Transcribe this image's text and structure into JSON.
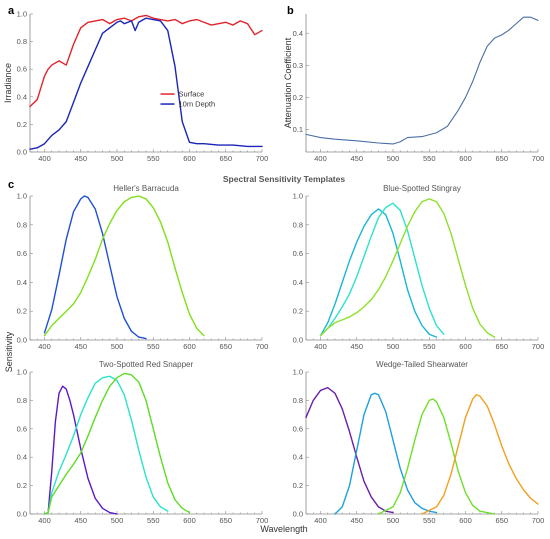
{
  "figure": {
    "panel_labels": [
      "a",
      "b",
      "c"
    ],
    "section_title": "Spectral Sensitivity Templates",
    "shared_xlabel": "Wavelength",
    "shared_ylabel": "Sensitivity"
  },
  "chart_data": [
    {
      "id": "a",
      "type": "line",
      "ylabel": "Irradiance",
      "xlim": [
        380,
        700
      ],
      "ylim": [
        0,
        1.0
      ],
      "xticks": [
        400,
        450,
        500,
        550,
        600,
        650,
        700
      ],
      "yticks": [
        0.0,
        0.2,
        0.4,
        0.6,
        0.8,
        1.0
      ],
      "ytick_labels": [
        "0.0",
        "0.2",
        "0.4",
        "0.6",
        "0.8",
        "1.0"
      ],
      "legend_position": "center-right",
      "series": [
        {
          "name": "Surface",
          "color": "#e3232c",
          "x": [
            380,
            390,
            400,
            405,
            410,
            420,
            430,
            440,
            450,
            460,
            470,
            480,
            490,
            500,
            510,
            520,
            530,
            540,
            550,
            560,
            570,
            580,
            590,
            600,
            610,
            620,
            630,
            640,
            650,
            660,
            670,
            680,
            690,
            700
          ],
          "y": [
            0.33,
            0.38,
            0.55,
            0.6,
            0.63,
            0.66,
            0.63,
            0.78,
            0.9,
            0.94,
            0.95,
            0.96,
            0.93,
            0.96,
            0.97,
            0.95,
            0.98,
            0.99,
            0.97,
            0.96,
            0.95,
            0.96,
            0.93,
            0.95,
            0.96,
            0.94,
            0.92,
            0.93,
            0.94,
            0.92,
            0.95,
            0.93,
            0.85,
            0.88
          ]
        },
        {
          "name": "10m Depth",
          "color": "#1b25b8",
          "x": [
            380,
            390,
            400,
            410,
            420,
            430,
            440,
            450,
            460,
            470,
            480,
            490,
            500,
            505,
            510,
            520,
            525,
            530,
            540,
            550,
            560,
            570,
            580,
            590,
            600,
            610,
            620,
            640,
            660,
            680,
            700
          ],
          "y": [
            0.02,
            0.03,
            0.06,
            0.12,
            0.16,
            0.22,
            0.36,
            0.5,
            0.62,
            0.74,
            0.86,
            0.9,
            0.94,
            0.95,
            0.93,
            0.95,
            0.88,
            0.94,
            0.97,
            0.96,
            0.95,
            0.88,
            0.62,
            0.22,
            0.07,
            0.06,
            0.06,
            0.05,
            0.05,
            0.04,
            0.04
          ]
        }
      ]
    },
    {
      "id": "b",
      "type": "line",
      "ylabel": "Attenuation Coefficient",
      "xlim": [
        380,
        700
      ],
      "ylim": [
        0.03,
        0.46
      ],
      "xticks": [
        400,
        450,
        500,
        550,
        600,
        650,
        700
      ],
      "yticks": [
        0.1,
        0.2,
        0.3,
        0.4
      ],
      "ytick_labels": [
        "0.1",
        "0.2",
        "0.3",
        "0.4"
      ],
      "series": [
        {
          "color": "#4a6fa5",
          "x": [
            380,
            400,
            420,
            450,
            480,
            500,
            510,
            520,
            540,
            560,
            575,
            590,
            600,
            610,
            620,
            630,
            640,
            650,
            660,
            670,
            680,
            690,
            700
          ],
          "y": [
            0.085,
            0.075,
            0.07,
            0.065,
            0.058,
            0.055,
            0.062,
            0.075,
            0.078,
            0.09,
            0.11,
            0.16,
            0.2,
            0.25,
            0.31,
            0.36,
            0.385,
            0.395,
            0.41,
            0.43,
            0.45,
            0.45,
            0.44
          ]
        }
      ]
    },
    {
      "id": "c1",
      "type": "line",
      "title": "Heller's Barracuda",
      "xlim": [
        380,
        700
      ],
      "ylim": [
        0,
        1.0
      ],
      "xticks": [
        400,
        450,
        500,
        550,
        600,
        650,
        700
      ],
      "yticks": [
        0.0,
        0.2,
        0.4,
        0.6,
        0.8,
        1.0
      ],
      "ytick_labels": [
        "0.0",
        "0.2",
        "0.4",
        "0.6",
        "0.8",
        "1.0"
      ],
      "series": [
        {
          "color": "#1f4fd6",
          "x": [
            400,
            410,
            420,
            430,
            440,
            450,
            455,
            460,
            470,
            480,
            490,
            500,
            510,
            520,
            530,
            540
          ],
          "y": [
            0.05,
            0.21,
            0.45,
            0.7,
            0.89,
            0.98,
            1.0,
            0.99,
            0.91,
            0.74,
            0.52,
            0.3,
            0.15,
            0.06,
            0.02,
            0.01
          ]
        },
        {
          "color": "#7fe018",
          "x": [
            400,
            410,
            420,
            430,
            440,
            450,
            460,
            470,
            480,
            490,
            500,
            510,
            520,
            530,
            540,
            550,
            560,
            570,
            580,
            590,
            600,
            610,
            620
          ],
          "y": [
            0.03,
            0.1,
            0.15,
            0.2,
            0.25,
            0.33,
            0.44,
            0.56,
            0.7,
            0.81,
            0.9,
            0.96,
            0.99,
            1.0,
            0.98,
            0.92,
            0.82,
            0.68,
            0.5,
            0.33,
            0.18,
            0.08,
            0.03
          ]
        }
      ]
    },
    {
      "id": "c2",
      "type": "line",
      "title": "Blue-Spotted Stingray",
      "xlim": [
        380,
        700
      ],
      "ylim": [
        0,
        1.0
      ],
      "xticks": [
        400,
        450,
        500,
        550,
        600,
        650,
        700
      ],
      "yticks": [
        0.0,
        0.2,
        0.4,
        0.6,
        0.8,
        1.0
      ],
      "ytick_labels": [
        "0.0",
        "0.2",
        "0.4",
        "0.6",
        "0.8",
        "1.0"
      ],
      "series": [
        {
          "color": "#19b7d6",
          "x": [
            400,
            410,
            420,
            430,
            440,
            450,
            460,
            470,
            480,
            490,
            500,
            510,
            520,
            530,
            540,
            550,
            560
          ],
          "y": [
            0.03,
            0.12,
            0.25,
            0.4,
            0.55,
            0.68,
            0.79,
            0.87,
            0.91,
            0.87,
            0.74,
            0.55,
            0.35,
            0.2,
            0.1,
            0.04,
            0.02
          ]
        },
        {
          "color": "#2be3c9",
          "x": [
            400,
            410,
            420,
            430,
            440,
            450,
            460,
            470,
            480,
            490,
            500,
            510,
            520,
            530,
            540,
            550,
            560,
            570
          ],
          "y": [
            0.03,
            0.08,
            0.15,
            0.23,
            0.32,
            0.44,
            0.58,
            0.72,
            0.85,
            0.92,
            0.95,
            0.9,
            0.76,
            0.57,
            0.38,
            0.22,
            0.1,
            0.04
          ]
        },
        {
          "color": "#8ee02a",
          "x": [
            400,
            410,
            420,
            430,
            440,
            450,
            460,
            470,
            480,
            490,
            500,
            510,
            520,
            530,
            540,
            550,
            560,
            570,
            580,
            590,
            600,
            610,
            620,
            630,
            640
          ],
          "y": [
            0.03,
            0.08,
            0.12,
            0.14,
            0.16,
            0.19,
            0.23,
            0.28,
            0.35,
            0.44,
            0.55,
            0.67,
            0.79,
            0.89,
            0.96,
            0.98,
            0.96,
            0.88,
            0.74,
            0.56,
            0.38,
            0.22,
            0.11,
            0.05,
            0.02
          ]
        }
      ]
    },
    {
      "id": "c3",
      "type": "line",
      "title": "Two-Spotted Red Snapper",
      "xlim": [
        380,
        700
      ],
      "ylim": [
        0,
        1.0
      ],
      "xticks": [
        400,
        450,
        500,
        550,
        600,
        650,
        700
      ],
      "yticks": [
        0.0,
        0.2,
        0.4,
        0.6,
        0.8,
        1.0
      ],
      "ytick_labels": [
        "0.0",
        "0.2",
        "0.4",
        "0.6",
        "0.8",
        "1.0"
      ],
      "series": [
        {
          "color": "#5a19c8",
          "x": [
            400,
            405,
            410,
            415,
            420,
            425,
            430,
            435,
            440,
            450,
            460,
            470,
            480,
            490,
            500
          ],
          "y": [
            0.0,
            0.01,
            0.3,
            0.65,
            0.85,
            0.9,
            0.88,
            0.8,
            0.7,
            0.46,
            0.25,
            0.11,
            0.04,
            0.01,
            0.0
          ]
        },
        {
          "color": "#2be3c9",
          "x": [
            400,
            405,
            410,
            420,
            430,
            440,
            450,
            460,
            470,
            480,
            490,
            500,
            510,
            520,
            530,
            540,
            550,
            560,
            570
          ],
          "y": [
            0.0,
            0.01,
            0.15,
            0.3,
            0.42,
            0.55,
            0.7,
            0.82,
            0.92,
            0.96,
            0.97,
            0.94,
            0.84,
            0.66,
            0.45,
            0.26,
            0.12,
            0.05,
            0.02
          ]
        },
        {
          "color": "#5fdc24",
          "x": [
            400,
            405,
            410,
            420,
            430,
            440,
            450,
            460,
            470,
            480,
            490,
            500,
            510,
            520,
            530,
            540,
            550,
            560,
            570,
            580,
            590,
            600
          ],
          "y": [
            0.0,
            0.01,
            0.12,
            0.2,
            0.28,
            0.35,
            0.43,
            0.55,
            0.68,
            0.8,
            0.9,
            0.96,
            0.99,
            0.98,
            0.93,
            0.8,
            0.6,
            0.4,
            0.22,
            0.1,
            0.04,
            0.01
          ]
        }
      ]
    },
    {
      "id": "c4",
      "type": "line",
      "title": "Wedge-Tailed Shearwater",
      "xlim": [
        380,
        700
      ],
      "ylim": [
        0,
        1.0
      ],
      "xticks": [
        400,
        450,
        500,
        550,
        600,
        650,
        700
      ],
      "yticks": [
        0.0,
        0.2,
        0.4,
        0.6,
        0.8,
        1.0
      ],
      "ytick_labels": [
        "0.0",
        "0.2",
        "0.4",
        "0.6",
        "0.8",
        "1.0"
      ],
      "series": [
        {
          "color": "#6a1fa8",
          "x": [
            380,
            390,
            400,
            410,
            420,
            430,
            440,
            450,
            460,
            470,
            480,
            490,
            500
          ],
          "y": [
            0.68,
            0.8,
            0.87,
            0.89,
            0.85,
            0.74,
            0.58,
            0.4,
            0.23,
            0.12,
            0.05,
            0.02,
            0.01
          ]
        },
        {
          "color": "#1e9fe0",
          "x": [
            420,
            430,
            440,
            450,
            460,
            470,
            475,
            480,
            490,
            500,
            510,
            520,
            530,
            540,
            550,
            560
          ],
          "y": [
            0.0,
            0.05,
            0.2,
            0.45,
            0.7,
            0.84,
            0.85,
            0.84,
            0.72,
            0.52,
            0.32,
            0.17,
            0.08,
            0.04,
            0.02,
            0.01
          ]
        },
        {
          "color": "#6fe02a",
          "x": [
            480,
            500,
            510,
            520,
            530,
            540,
            550,
            555,
            560,
            570,
            580,
            590,
            600,
            610,
            620,
            640
          ],
          "y": [
            0.0,
            0.05,
            0.15,
            0.32,
            0.52,
            0.7,
            0.8,
            0.81,
            0.79,
            0.68,
            0.5,
            0.3,
            0.15,
            0.06,
            0.02,
            0.0
          ]
        },
        {
          "color": "#f0a020",
          "x": [
            540,
            560,
            570,
            580,
            590,
            600,
            610,
            615,
            620,
            630,
            640,
            650,
            660,
            670,
            680,
            690,
            700
          ],
          "y": [
            0.0,
            0.05,
            0.13,
            0.28,
            0.48,
            0.68,
            0.81,
            0.84,
            0.83,
            0.76,
            0.63,
            0.48,
            0.35,
            0.25,
            0.17,
            0.11,
            0.07
          ]
        }
      ]
    }
  ]
}
